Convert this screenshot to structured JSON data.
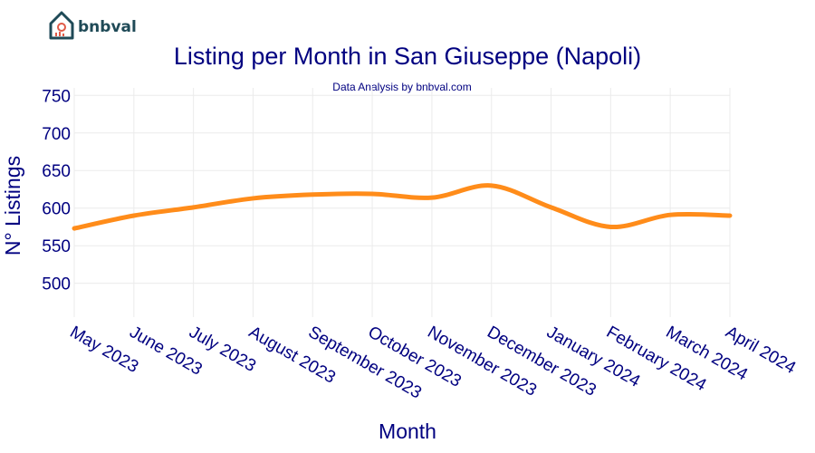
{
  "brand": {
    "name": "bnbval",
    "color": "#1f4a57",
    "accent": "#e05a47"
  },
  "chart_data": {
    "type": "line",
    "title": "Listing per Month in San Giuseppe (Napoli)",
    "subtitle": "Data Analysis by bnbval.com",
    "xlabel": "Month",
    "ylabel": "N° Listings",
    "categories": [
      "May 2023",
      "June 2023",
      "July 2023",
      "August 2023",
      "September 2023",
      "October 2023",
      "November 2023",
      "December 2023",
      "January 2024",
      "February 2024",
      "March 2024",
      "April 2024"
    ],
    "series": [
      {
        "values": [
          573,
          590,
          601,
          613,
          618,
          619,
          614,
          630,
          601,
          575,
          591,
          590
        ],
        "color": "#ff8c1a"
      }
    ],
    "yticks": [
      500,
      550,
      600,
      650,
      700,
      750
    ],
    "ylim": [
      455,
      760
    ],
    "grid": true,
    "text_color": "#000080"
  }
}
